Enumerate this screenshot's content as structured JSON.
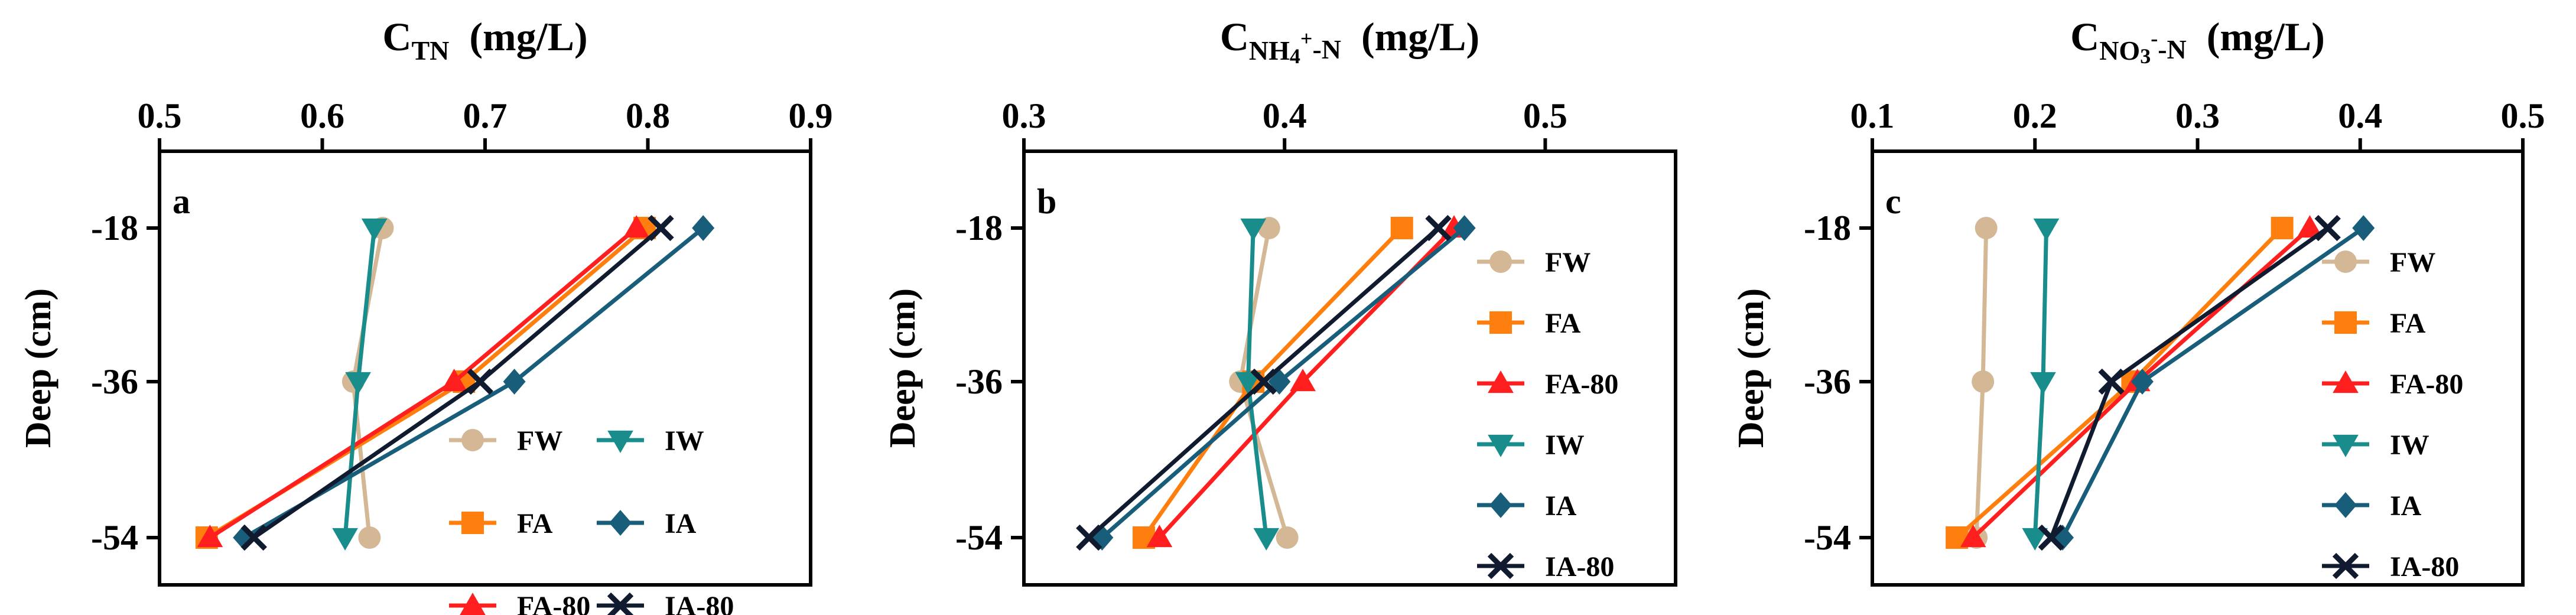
{
  "chart_data": [
    {
      "type": "line",
      "panel_label": "a",
      "title": {
        "base": "C",
        "sub": "TN",
        "sup": "",
        "sub_tail": "",
        "unit": "(mg/L)"
      },
      "xlabel": "",
      "ylabel": "Deep (cm)",
      "xlim": [
        0.5,
        0.9
      ],
      "xticks": [
        0.5,
        0.6,
        0.7,
        0.8,
        0.9
      ],
      "xtick_labels": [
        "0.5",
        "0.6",
        "0.7",
        "0.8",
        "0.9"
      ],
      "y_categories": [
        "-18",
        "-36",
        "-54"
      ],
      "legend_columns": 2,
      "legend_position": "bottom-right",
      "series": [
        {
          "name": "FW",
          "values": [
            0.637,
            0.619,
            0.629
          ]
        },
        {
          "name": "FA",
          "values": [
            0.798,
            0.687,
            0.529
          ]
        },
        {
          "name": "FA-80",
          "values": [
            0.793,
            0.681,
            0.531
          ]
        },
        {
          "name": "IW",
          "values": [
            0.632,
            0.622,
            0.614
          ]
        },
        {
          "name": "IA",
          "values": [
            0.834,
            0.718,
            0.552
          ]
        },
        {
          "name": "IA-80",
          "values": [
            0.808,
            0.697,
            0.558
          ]
        }
      ]
    },
    {
      "type": "line",
      "panel_label": "b",
      "title": {
        "base": "C",
        "sub": "NH",
        "sub2": "4",
        "sup": "+",
        "sub_tail": "-N",
        "unit": "(mg/L)"
      },
      "xlabel": "",
      "ylabel": "Deep (cm)",
      "xlim": [
        0.3,
        0.55
      ],
      "xticks": [
        0.3,
        0.4,
        0.5
      ],
      "xtick_labels": [
        "0.3",
        "0.4",
        "0.5"
      ],
      "y_categories": [
        "-18",
        "-36",
        "-54"
      ],
      "legend_columns": 1,
      "legend_position": "right",
      "series": [
        {
          "name": "FW",
          "values": [
            0.394,
            0.383,
            0.401
          ]
        },
        {
          "name": "FA",
          "values": [
            0.445,
            0.388,
            0.346
          ]
        },
        {
          "name": "FA-80",
          "values": [
            0.465,
            0.407,
            0.352
          ]
        },
        {
          "name": "IW",
          "values": [
            0.388,
            0.386,
            0.393
          ]
        },
        {
          "name": "IA",
          "values": [
            0.469,
            0.398,
            0.33
          ]
        },
        {
          "name": "IA-80",
          "values": [
            0.459,
            0.392,
            0.325
          ]
        }
      ]
    },
    {
      "type": "line",
      "panel_label": "c",
      "title": {
        "base": "C",
        "sub": "NO",
        "sub2": "3",
        "sup": "-",
        "sub_tail": "-N",
        "unit": "(mg/L)"
      },
      "xlabel": "",
      "ylabel": "Deep (cm)",
      "xlim": [
        0.1,
        0.5
      ],
      "xticks": [
        0.1,
        0.2,
        0.3,
        0.4,
        0.5
      ],
      "xtick_labels": [
        "0.1",
        "0.2",
        "0.3",
        "0.4",
        "0.5"
      ],
      "y_categories": [
        "-18",
        "-36",
        "-54"
      ],
      "legend_columns": 1,
      "legend_position": "right",
      "series": [
        {
          "name": "FW",
          "values": [
            0.17,
            0.168,
            0.164
          ]
        },
        {
          "name": "FA",
          "values": [
            0.352,
            0.26,
            0.152
          ]
        },
        {
          "name": "FA-80",
          "values": [
            0.369,
            0.263,
            0.162
          ]
        },
        {
          "name": "IW",
          "values": [
            0.207,
            0.205,
            0.2
          ]
        },
        {
          "name": "IA",
          "values": [
            0.402,
            0.266,
            0.217
          ]
        },
        {
          "name": "IA-80",
          "values": [
            0.38,
            0.247,
            0.21
          ]
        }
      ]
    }
  ],
  "styles": {
    "FW": {
      "color": "#d4b896",
      "marker": "circle"
    },
    "FA": {
      "color": "#ff7f0e",
      "marker": "square"
    },
    "FA-80": {
      "color": "#ff1f1f",
      "marker": "triangle-up"
    },
    "IW": {
      "color": "#198c8c",
      "marker": "triangle-down"
    },
    "IA": {
      "color": "#185e7a",
      "marker": "diamond"
    },
    "IA-80": {
      "color": "#111b30",
      "marker": "cross"
    }
  }
}
